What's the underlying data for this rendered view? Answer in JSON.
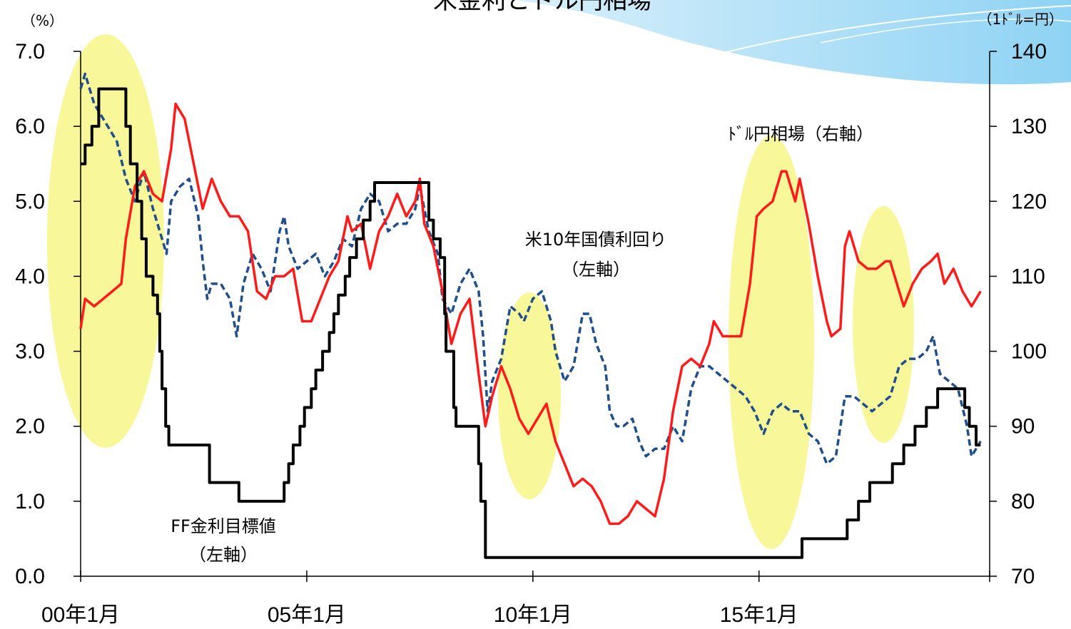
{
  "title": "米金利とドル円相場",
  "chart_data": {
    "type": "line",
    "title": "米金利とドル円相場",
    "y_left_unit": "（%）",
    "y_right_unit": "（1ﾄﾞﾙ=円）",
    "y_left_lim": [
      0.0,
      7.0
    ],
    "y_right_lim": [
      70,
      140
    ],
    "y_left_ticks": [
      "0.0",
      "1.0",
      "2.0",
      "3.0",
      "4.0",
      "5.0",
      "6.0",
      "7.0"
    ],
    "y_right_ticks": [
      "70",
      "80",
      "90",
      "100",
      "110",
      "120",
      "130",
      "140"
    ],
    "x_ticks": [
      {
        "label": "00年1月",
        "year": 2000.0
      },
      {
        "label": "05年1月",
        "year": 2005.0
      },
      {
        "label": "10年1月",
        "year": 2010.0
      },
      {
        "label": "15年1月",
        "year": 2015.0
      }
    ],
    "x_lim": [
      2000.0,
      2020.1
    ],
    "grid": false,
    "series": [
      {
        "name": "FF金利目標値（左軸）",
        "axis": "left",
        "color": "#000000",
        "style": "step",
        "points": [
          [
            2000.0,
            5.5
          ],
          [
            2000.1,
            5.75
          ],
          [
            2000.25,
            6.0
          ],
          [
            2000.4,
            6.5
          ],
          [
            2001.0,
            6.0
          ],
          [
            2001.1,
            5.5
          ],
          [
            2001.25,
            5.0
          ],
          [
            2001.35,
            4.5
          ],
          [
            2001.45,
            4.0
          ],
          [
            2001.6,
            3.75
          ],
          [
            2001.7,
            3.5
          ],
          [
            2001.75,
            3.0
          ],
          [
            2001.8,
            2.5
          ],
          [
            2001.88,
            2.0
          ],
          [
            2001.95,
            1.75
          ],
          [
            2002.85,
            1.25
          ],
          [
            2003.5,
            1.0
          ],
          [
            2004.5,
            1.25
          ],
          [
            2004.6,
            1.5
          ],
          [
            2004.7,
            1.75
          ],
          [
            2004.85,
            2.0
          ],
          [
            2004.95,
            2.25
          ],
          [
            2005.1,
            2.5
          ],
          [
            2005.2,
            2.75
          ],
          [
            2005.35,
            3.0
          ],
          [
            2005.5,
            3.25
          ],
          [
            2005.6,
            3.5
          ],
          [
            2005.7,
            3.75
          ],
          [
            2005.85,
            4.0
          ],
          [
            2005.95,
            4.25
          ],
          [
            2006.1,
            4.5
          ],
          [
            2006.25,
            4.75
          ],
          [
            2006.4,
            5.0
          ],
          [
            2006.5,
            5.25
          ],
          [
            2007.7,
            4.75
          ],
          [
            2007.8,
            4.5
          ],
          [
            2007.95,
            4.25
          ],
          [
            2008.05,
            3.5
          ],
          [
            2008.08,
            3.0
          ],
          [
            2008.25,
            2.25
          ],
          [
            2008.3,
            2.0
          ],
          [
            2008.8,
            1.5
          ],
          [
            2008.85,
            1.0
          ],
          [
            2008.95,
            0.25
          ],
          [
            2015.95,
            0.5
          ],
          [
            2016.95,
            0.75
          ],
          [
            2017.2,
            1.0
          ],
          [
            2017.45,
            1.25
          ],
          [
            2017.95,
            1.5
          ],
          [
            2018.2,
            1.75
          ],
          [
            2018.45,
            2.0
          ],
          [
            2018.7,
            2.25
          ],
          [
            2018.95,
            2.5
          ],
          [
            2019.55,
            2.25
          ],
          [
            2019.65,
            2.0
          ],
          [
            2019.8,
            1.75
          ],
          [
            2019.9,
            1.75
          ]
        ]
      },
      {
        "name": "米10年国債利回り（左軸）",
        "axis": "left",
        "color": "#1f4e8c",
        "style": "dashed",
        "points": [
          [
            2000.0,
            6.5
          ],
          [
            2000.1,
            6.7
          ],
          [
            2000.3,
            6.3
          ],
          [
            2000.6,
            6.0
          ],
          [
            2000.8,
            5.8
          ],
          [
            2001.0,
            5.3
          ],
          [
            2001.2,
            5.0
          ],
          [
            2001.4,
            5.4
          ],
          [
            2001.6,
            4.9
          ],
          [
            2001.8,
            4.5
          ],
          [
            2001.9,
            4.3
          ],
          [
            2002.0,
            5.0
          ],
          [
            2002.2,
            5.2
          ],
          [
            2002.4,
            5.3
          ],
          [
            2002.6,
            4.8
          ],
          [
            2002.7,
            4.2
          ],
          [
            2002.8,
            3.7
          ],
          [
            2002.9,
            3.9
          ],
          [
            2003.1,
            3.9
          ],
          [
            2003.3,
            3.7
          ],
          [
            2003.45,
            3.2
          ],
          [
            2003.6,
            3.9
          ],
          [
            2003.8,
            4.3
          ],
          [
            2004.0,
            4.1
          ],
          [
            2004.2,
            3.8
          ],
          [
            2004.4,
            4.6
          ],
          [
            2004.5,
            4.8
          ],
          [
            2004.6,
            4.4
          ],
          [
            2004.8,
            4.1
          ],
          [
            2005.0,
            4.2
          ],
          [
            2005.2,
            4.3
          ],
          [
            2005.4,
            4.0
          ],
          [
            2005.6,
            4.2
          ],
          [
            2005.8,
            4.5
          ],
          [
            2006.0,
            4.4
          ],
          [
            2006.2,
            4.9
          ],
          [
            2006.4,
            5.1
          ],
          [
            2006.6,
            5.0
          ],
          [
            2006.8,
            4.6
          ],
          [
            2007.0,
            4.7
          ],
          [
            2007.2,
            4.7
          ],
          [
            2007.4,
            4.9
          ],
          [
            2007.5,
            5.2
          ],
          [
            2007.7,
            4.6
          ],
          [
            2007.9,
            4.3
          ],
          [
            2008.0,
            3.7
          ],
          [
            2008.2,
            3.5
          ],
          [
            2008.4,
            3.9
          ],
          [
            2008.6,
            4.1
          ],
          [
            2008.8,
            3.8
          ],
          [
            2008.9,
            3.2
          ],
          [
            2009.0,
            2.2
          ],
          [
            2009.1,
            2.6
          ],
          [
            2009.3,
            2.9
          ],
          [
            2009.5,
            3.6
          ],
          [
            2009.7,
            3.5
          ],
          [
            2009.8,
            3.4
          ],
          [
            2010.0,
            3.7
          ],
          [
            2010.2,
            3.8
          ],
          [
            2010.4,
            3.4
          ],
          [
            2010.5,
            3.0
          ],
          [
            2010.7,
            2.6
          ],
          [
            2010.9,
            2.8
          ],
          [
            2011.1,
            3.5
          ],
          [
            2011.25,
            3.5
          ],
          [
            2011.4,
            3.1
          ],
          [
            2011.6,
            2.8
          ],
          [
            2011.7,
            2.2
          ],
          [
            2011.85,
            2.0
          ],
          [
            2012.0,
            2.0
          ],
          [
            2012.2,
            2.1
          ],
          [
            2012.35,
            1.8
          ],
          [
            2012.5,
            1.6
          ],
          [
            2012.7,
            1.7
          ],
          [
            2012.9,
            1.7
          ],
          [
            2013.1,
            2.0
          ],
          [
            2013.3,
            1.8
          ],
          [
            2013.5,
            2.5
          ],
          [
            2013.7,
            2.8
          ],
          [
            2013.9,
            2.8
          ],
          [
            2014.1,
            2.7
          ],
          [
            2014.3,
            2.6
          ],
          [
            2014.5,
            2.5
          ],
          [
            2014.7,
            2.4
          ],
          [
            2014.9,
            2.2
          ],
          [
            2015.1,
            1.9
          ],
          [
            2015.3,
            2.2
          ],
          [
            2015.5,
            2.3
          ],
          [
            2015.7,
            2.2
          ],
          [
            2015.9,
            2.2
          ],
          [
            2016.1,
            1.9
          ],
          [
            2016.3,
            1.8
          ],
          [
            2016.5,
            1.5
          ],
          [
            2016.7,
            1.6
          ],
          [
            2016.9,
            2.4
          ],
          [
            2017.1,
            2.4
          ],
          [
            2017.3,
            2.3
          ],
          [
            2017.5,
            2.2
          ],
          [
            2017.7,
            2.3
          ],
          [
            2017.9,
            2.4
          ],
          [
            2018.1,
            2.8
          ],
          [
            2018.3,
            2.9
          ],
          [
            2018.5,
            2.9
          ],
          [
            2018.7,
            3.0
          ],
          [
            2018.85,
            3.2
          ],
          [
            2019.0,
            2.7
          ],
          [
            2019.2,
            2.6
          ],
          [
            2019.4,
            2.5
          ],
          [
            2019.6,
            2.0
          ],
          [
            2019.7,
            1.6
          ],
          [
            2019.8,
            1.7
          ],
          [
            2019.9,
            1.8
          ]
        ]
      },
      {
        "name": "ドル円相場（右軸）",
        "axis": "right",
        "color": "#ff1a1a",
        "style": "solid",
        "points": [
          [
            2000.0,
            103
          ],
          [
            2000.1,
            107
          ],
          [
            2000.3,
            106
          ],
          [
            2000.5,
            107
          ],
          [
            2000.7,
            108
          ],
          [
            2000.9,
            109
          ],
          [
            2001.0,
            115
          ],
          [
            2001.2,
            122
          ],
          [
            2001.4,
            124
          ],
          [
            2001.6,
            121
          ],
          [
            2001.8,
            120
          ],
          [
            2002.0,
            127
          ],
          [
            2002.1,
            133
          ],
          [
            2002.3,
            131
          ],
          [
            2002.5,
            125
          ],
          [
            2002.7,
            119
          ],
          [
            2002.9,
            123
          ],
          [
            2003.1,
            120
          ],
          [
            2003.3,
            118
          ],
          [
            2003.5,
            118
          ],
          [
            2003.7,
            116
          ],
          [
            2003.9,
            108
          ],
          [
            2004.1,
            107
          ],
          [
            2004.3,
            110
          ],
          [
            2004.5,
            110
          ],
          [
            2004.7,
            111
          ],
          [
            2004.9,
            104
          ],
          [
            2005.1,
            104
          ],
          [
            2005.3,
            107
          ],
          [
            2005.5,
            110
          ],
          [
            2005.7,
            112
          ],
          [
            2005.9,
            118
          ],
          [
            2006.0,
            116
          ],
          [
            2006.2,
            117
          ],
          [
            2006.4,
            111
          ],
          [
            2006.6,
            116
          ],
          [
            2006.8,
            118
          ],
          [
            2007.0,
            121
          ],
          [
            2007.2,
            118
          ],
          [
            2007.4,
            120
          ],
          [
            2007.5,
            123
          ],
          [
            2007.6,
            117
          ],
          [
            2007.8,
            114
          ],
          [
            2008.0,
            108
          ],
          [
            2008.2,
            101
          ],
          [
            2008.4,
            105
          ],
          [
            2008.6,
            107
          ],
          [
            2008.8,
            97
          ],
          [
            2008.95,
            90
          ],
          [
            2009.1,
            94
          ],
          [
            2009.3,
            98
          ],
          [
            2009.5,
            95
          ],
          [
            2009.7,
            91
          ],
          [
            2009.9,
            89
          ],
          [
            2010.1,
            91
          ],
          [
            2010.3,
            93
          ],
          [
            2010.5,
            88
          ],
          [
            2010.7,
            85
          ],
          [
            2010.9,
            82
          ],
          [
            2011.1,
            83
          ],
          [
            2011.3,
            82
          ],
          [
            2011.5,
            80
          ],
          [
            2011.7,
            77
          ],
          [
            2011.9,
            77
          ],
          [
            2012.1,
            78
          ],
          [
            2012.3,
            80
          ],
          [
            2012.5,
            79
          ],
          [
            2012.7,
            78
          ],
          [
            2012.9,
            83
          ],
          [
            2013.1,
            92
          ],
          [
            2013.3,
            98
          ],
          [
            2013.5,
            99
          ],
          [
            2013.7,
            98
          ],
          [
            2013.9,
            101
          ],
          [
            2014.0,
            104
          ],
          [
            2014.2,
            102
          ],
          [
            2014.4,
            102
          ],
          [
            2014.6,
            102
          ],
          [
            2014.8,
            109
          ],
          [
            2014.95,
            118
          ],
          [
            2015.1,
            119
          ],
          [
            2015.3,
            120
          ],
          [
            2015.5,
            124
          ],
          [
            2015.6,
            124
          ],
          [
            2015.8,
            120
          ],
          [
            2015.9,
            123
          ],
          [
            2016.1,
            117
          ],
          [
            2016.3,
            110
          ],
          [
            2016.5,
            104
          ],
          [
            2016.6,
            102
          ],
          [
            2016.8,
            103
          ],
          [
            2016.9,
            114
          ],
          [
            2017.0,
            116
          ],
          [
            2017.2,
            112
          ],
          [
            2017.4,
            111
          ],
          [
            2017.6,
            111
          ],
          [
            2017.8,
            112
          ],
          [
            2017.9,
            112
          ],
          [
            2018.1,
            108
          ],
          [
            2018.2,
            106
          ],
          [
            2018.4,
            109
          ],
          [
            2018.6,
            111
          ],
          [
            2018.8,
            112
          ],
          [
            2018.95,
            113
          ],
          [
            2019.1,
            109
          ],
          [
            2019.3,
            111
          ],
          [
            2019.5,
            108
          ],
          [
            2019.7,
            106
          ],
          [
            2019.8,
            107
          ],
          [
            2019.9,
            108
          ]
        ]
      }
    ],
    "labels": {
      "ff": [
        "FF金利目標値",
        "（左軸）"
      ],
      "bond": [
        "米10年国債利回り",
        "（左軸）"
      ],
      "usdjpy": "ﾄﾞﾙ円相場（右軸）"
    },
    "highlight_color": "#f5f57a"
  }
}
